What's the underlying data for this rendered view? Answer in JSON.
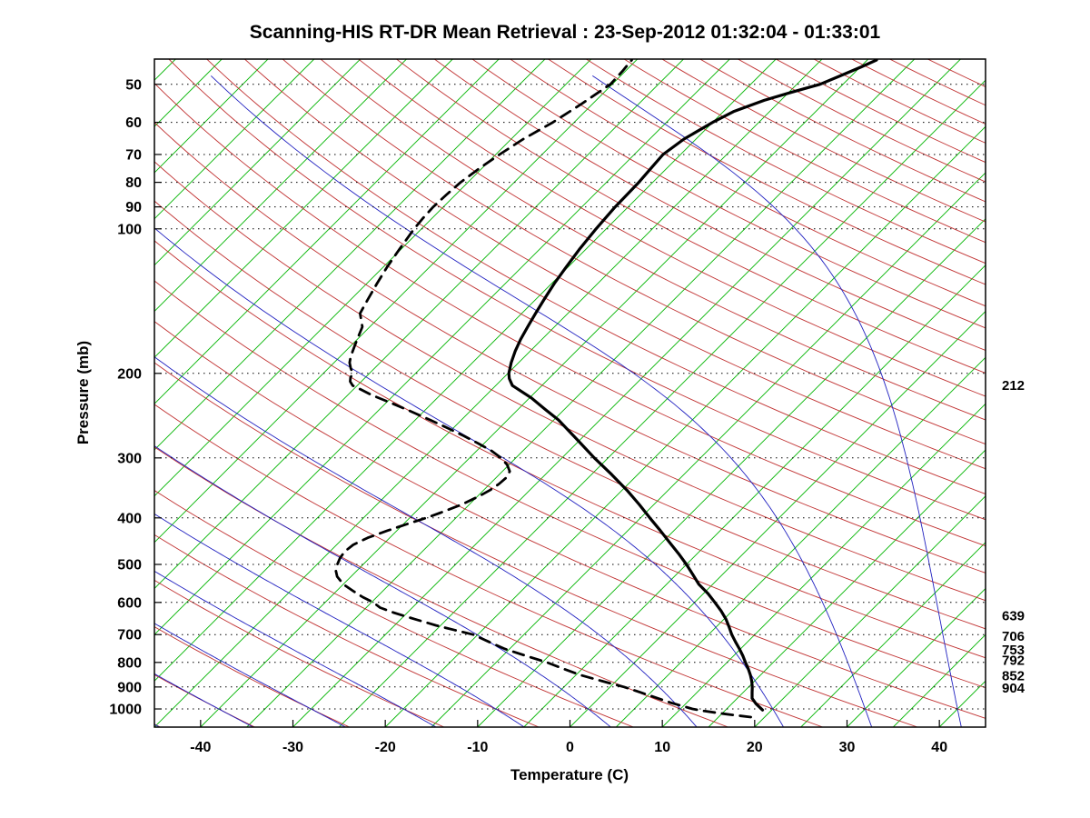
{
  "title": "Scanning-HIS RT-DR Mean Retrieval : 23-Sep-2012 01:32:04 - 01:33:01",
  "chart_data": {
    "type": "line",
    "variant": "skew-t-log-p-sounding",
    "title": "Scanning-HIS RT-DR Mean Retrieval : 23-Sep-2012 01:32:04 - 01:33:01",
    "xlabel": "Temperature (C)",
    "ylabel": "Pressure (mb)",
    "x_tick_labels": [
      -40,
      -30,
      -20,
      -10,
      0,
      10,
      20,
      30,
      40
    ],
    "y_tick_labels": [
      50,
      60,
      70,
      80,
      90,
      100,
      200,
      300,
      400,
      500,
      600,
      700,
      800,
      900,
      1000
    ],
    "right_level_labels": [
      "212",
      "639",
      "706",
      "753",
      "792",
      "852",
      "904"
    ],
    "right_level_pressures": [
      212,
      639,
      706,
      753,
      792,
      852,
      904
    ],
    "pressure_range": [
      44.3,
      1091
    ],
    "temp_axis": {
      "min": -45,
      "max": 45
    },
    "skew": 1,
    "grid_on": true,
    "legend": "none",
    "colors": {
      "isotherm": "#00b400",
      "dry_adiabat": "#c03030",
      "moist_adiabat": "#2020c0",
      "profile": "#000000",
      "grid": "#000000",
      "background": "#ffffff"
    },
    "families": {
      "isotherms": {
        "start": -115,
        "end": 45,
        "step": 5
      },
      "dry_adiabats": {
        "start": -110,
        "end": 310,
        "step": 10
      },
      "moist_adiabats": {
        "start": -110,
        "end": 40,
        "step": 10
      }
    },
    "series": [
      {
        "name": "temperature",
        "line_style": "solid",
        "points": [
          [
            1005,
            19.0
          ],
          [
            975,
            17.6
          ],
          [
            950,
            16.6
          ],
          [
            925,
            16.0
          ],
          [
            900,
            15.4
          ],
          [
            875,
            14.7
          ],
          [
            850,
            13.9
          ],
          [
            825,
            13.0
          ],
          [
            800,
            12.0
          ],
          [
            775,
            11.0
          ],
          [
            750,
            9.9
          ],
          [
            725,
            8.7
          ],
          [
            700,
            7.5
          ],
          [
            675,
            6.4
          ],
          [
            650,
            5.2
          ],
          [
            625,
            3.8
          ],
          [
            600,
            2.2
          ],
          [
            575,
            0.5
          ],
          [
            550,
            -1.5
          ],
          [
            525,
            -3.2
          ],
          [
            500,
            -5.0
          ],
          [
            475,
            -7.0
          ],
          [
            450,
            -9.2
          ],
          [
            425,
            -11.5
          ],
          [
            400,
            -14.0
          ],
          [
            375,
            -16.6
          ],
          [
            350,
            -19.5
          ],
          [
            325,
            -22.8
          ],
          [
            300,
            -26.5
          ],
          [
            275,
            -30.3
          ],
          [
            250,
            -34.5
          ],
          [
            238,
            -37.0
          ],
          [
            225,
            -39.8
          ],
          [
            212,
            -43.2
          ],
          [
            205,
            -44.3
          ],
          [
            200,
            -44.9
          ],
          [
            190,
            -45.8
          ],
          [
            180,
            -46.6
          ],
          [
            170,
            -47.3
          ],
          [
            160,
            -47.9
          ],
          [
            150,
            -48.5
          ],
          [
            140,
            -49.1
          ],
          [
            130,
            -49.7
          ],
          [
            120,
            -50.2
          ],
          [
            110,
            -50.7
          ],
          [
            100,
            -51.1
          ],
          [
            90,
            -51.4
          ],
          [
            80,
            -51.5
          ],
          [
            75,
            -51.7
          ],
          [
            70,
            -51.9
          ],
          [
            65,
            -51.3
          ],
          [
            60,
            -50.0
          ],
          [
            57,
            -48.9
          ],
          [
            54,
            -46.8
          ],
          [
            52,
            -44.8
          ],
          [
            50,
            -42.5
          ],
          [
            48,
            -41.2
          ],
          [
            46,
            -39.9
          ],
          [
            44.5,
            -39.0
          ]
        ]
      },
      {
        "name": "dewpoint",
        "line_style": "dashed",
        "points": [
          [
            1040,
            18.5
          ],
          [
            1025,
            15.5
          ],
          [
            1010,
            12.8
          ],
          [
            1000,
            11.3
          ],
          [
            985,
            9.8
          ],
          [
            970,
            8.2
          ],
          [
            950,
            6.4
          ],
          [
            925,
            4.0
          ],
          [
            900,
            1.5
          ],
          [
            875,
            -1.5
          ],
          [
            850,
            -4.5
          ],
          [
            825,
            -7.0
          ],
          [
            800,
            -9.5
          ],
          [
            775,
            -12.5
          ],
          [
            750,
            -15.5
          ],
          [
            725,
            -18.0
          ],
          [
            700,
            -20.5
          ],
          [
            685,
            -23.0
          ],
          [
            670,
            -25.5
          ],
          [
            650,
            -28.5
          ],
          [
            630,
            -31.5
          ],
          [
            615,
            -33.5
          ],
          [
            600,
            -34.8
          ],
          [
            585,
            -36.5
          ],
          [
            570,
            -38.0
          ],
          [
            550,
            -40.0
          ],
          [
            530,
            -41.5
          ],
          [
            515,
            -42.3
          ],
          [
            500,
            -42.8
          ],
          [
            485,
            -43.2
          ],
          [
            470,
            -43.4
          ],
          [
            455,
            -43.2
          ],
          [
            440,
            -42.4
          ],
          [
            425,
            -41.0
          ],
          [
            410,
            -39.4
          ],
          [
            400,
            -38.2
          ],
          [
            390,
            -37.2
          ],
          [
            375,
            -35.8
          ],
          [
            360,
            -34.8
          ],
          [
            350,
            -34.3
          ],
          [
            340,
            -34.0
          ],
          [
            330,
            -33.9
          ],
          [
            320,
            -34.2
          ],
          [
            310,
            -35.2
          ],
          [
            300,
            -36.6
          ],
          [
            290,
            -38.4
          ],
          [
            280,
            -40.6
          ],
          [
            270,
            -43.0
          ],
          [
            260,
            -45.6
          ],
          [
            250,
            -48.4
          ],
          [
            240,
            -51.4
          ],
          [
            230,
            -54.6
          ],
          [
            222,
            -57.4
          ],
          [
            216,
            -59.2
          ],
          [
            212,
            -60.5
          ],
          [
            208,
            -61.2
          ],
          [
            204,
            -61.6
          ],
          [
            200,
            -61.8
          ],
          [
            195,
            -62.6
          ],
          [
            190,
            -63.3
          ],
          [
            185,
            -63.8
          ],
          [
            180,
            -64.2
          ],
          [
            175,
            -64.6
          ],
          [
            170,
            -65.0
          ],
          [
            160,
            -65.8
          ],
          [
            150,
            -67.5
          ],
          [
            140,
            -68.2
          ],
          [
            130,
            -68.9
          ],
          [
            120,
            -69.6
          ],
          [
            110,
            -70.2
          ],
          [
            100,
            -70.8
          ],
          [
            95,
            -71.0
          ],
          [
            90,
            -71.1
          ],
          [
            85,
            -71.0
          ],
          [
            80,
            -70.8
          ],
          [
            75,
            -70.3
          ],
          [
            70,
            -69.6
          ],
          [
            65,
            -68.7
          ],
          [
            60,
            -67.3
          ],
          [
            55,
            -66.2
          ],
          [
            50,
            -65.2
          ],
          [
            47,
            -65.3
          ],
          [
            44.5,
            -65.5
          ]
        ]
      }
    ]
  }
}
